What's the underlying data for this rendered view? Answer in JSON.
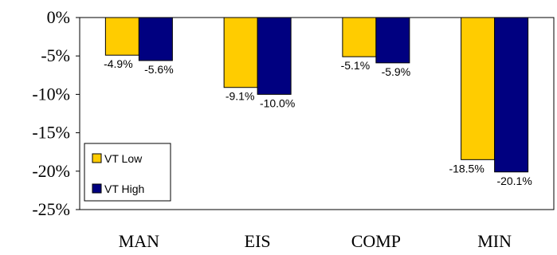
{
  "chart_data": {
    "type": "bar",
    "title": "",
    "xlabel": "",
    "ylabel": "",
    "categories": [
      "MAN",
      "EIS",
      "COMP",
      "MIN"
    ],
    "series": [
      {
        "name": "VT Low",
        "color": "#FFCC00",
        "values": [
          -4.9,
          -9.1,
          -5.1,
          -18.5
        ],
        "labels": [
          "-4.9%",
          "-9.1%",
          "-5.1%",
          "-18.5%"
        ]
      },
      {
        "name": "VT High",
        "color": "#000080",
        "values": [
          -5.6,
          -10.0,
          -5.9,
          -20.1
        ],
        "labels": [
          "-5.6%",
          "-10.0%",
          "-5.9%",
          "-20.1%"
        ]
      }
    ],
    "ylim": [
      -25,
      0
    ],
    "yticks": [
      0,
      -5,
      -10,
      -15,
      -20,
      -25
    ],
    "ytick_labels": [
      "0%",
      "-5%",
      "-10%",
      "-15%",
      "-20%",
      "-25%"
    ],
    "grid": false,
    "legend": "bottom-left"
  }
}
